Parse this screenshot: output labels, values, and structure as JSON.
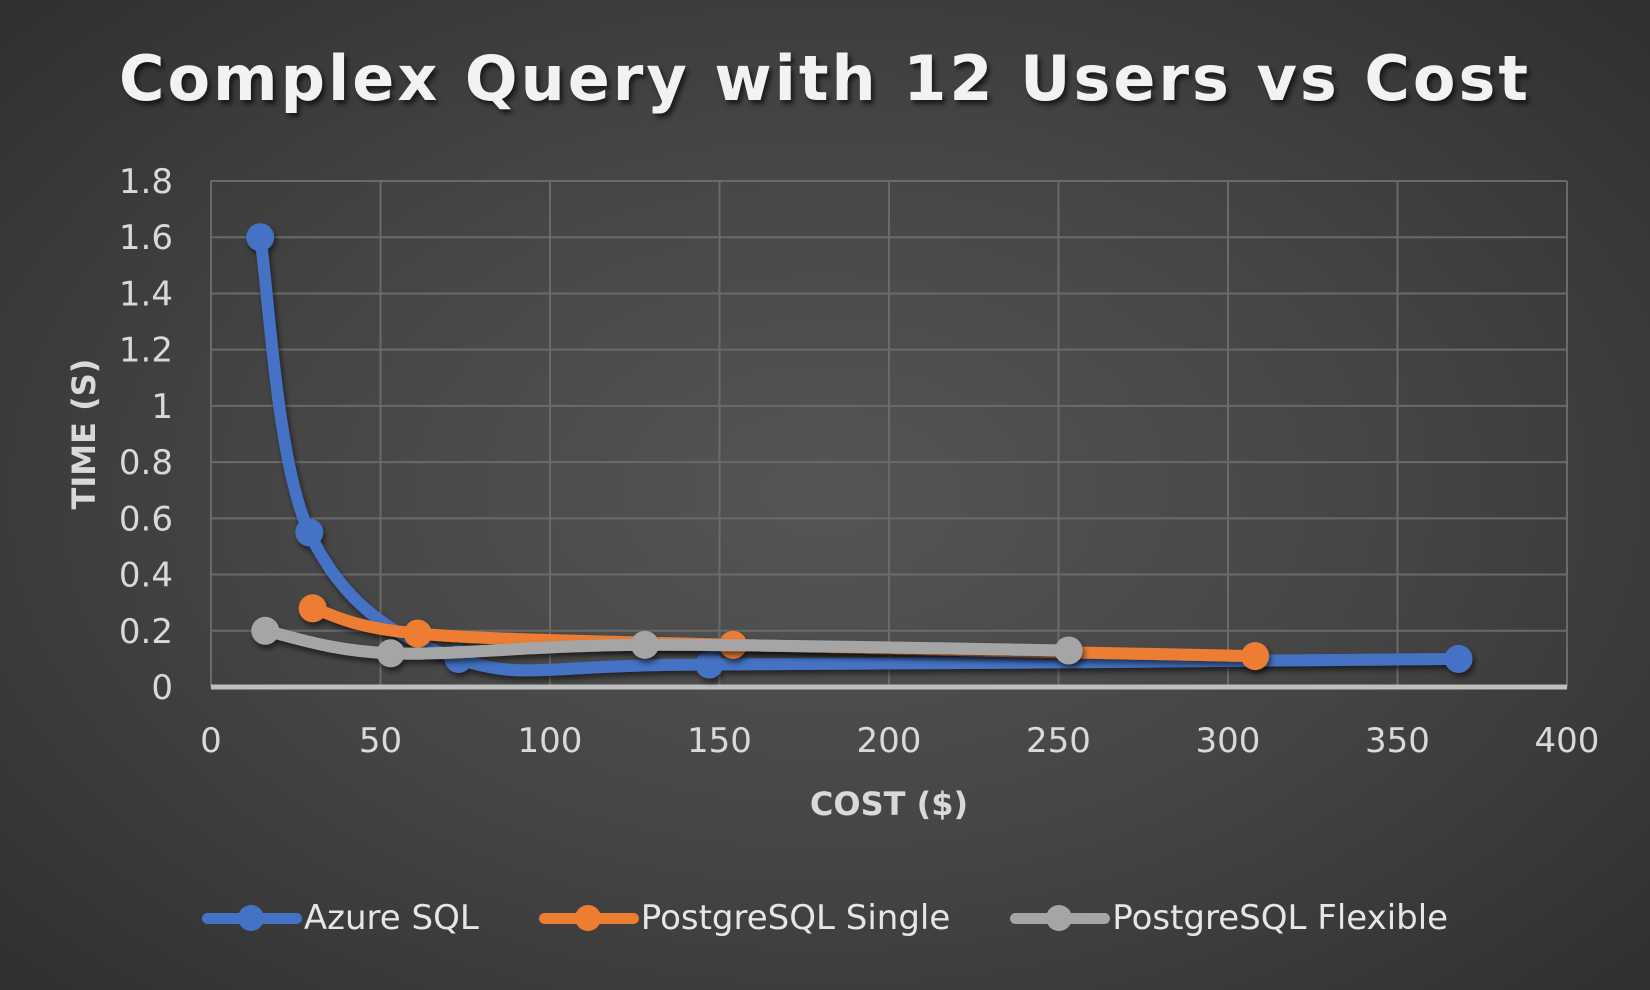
{
  "chart_data": {
    "type": "scatter",
    "subtype": "scatter-smooth-lines-markers",
    "title": "Complex Query with 12 Users vs Cost",
    "xlabel": "COST ($)",
    "ylabel": "TIME (S)",
    "xlim": [
      0,
      400
    ],
    "ylim": [
      0,
      1.8
    ],
    "xticks": [
      0,
      50,
      100,
      150,
      200,
      250,
      300,
      350,
      400
    ],
    "yticks": [
      0,
      0.2,
      0.4,
      0.6,
      0.8,
      1,
      1.2,
      1.4,
      1.6,
      1.8
    ],
    "ytick_labels": [
      "0",
      "0.2",
      "0.4",
      "0.6",
      "0.8",
      "1",
      "1.2",
      "1.4",
      "1.6",
      "1.8"
    ],
    "grid": true,
    "legend_position": "bottom",
    "series": [
      {
        "name": "Azure SQL",
        "color": "#4472C4",
        "x": [
          14.5,
          29,
          73,
          147,
          368
        ],
        "y": [
          1.6,
          0.55,
          0.1,
          0.08,
          0.1
        ]
      },
      {
        "name": "PostgreSQL Single",
        "color": "#ED7D31",
        "x": [
          30,
          61,
          154,
          308
        ],
        "y": [
          0.28,
          0.19,
          0.15,
          0.11
        ]
      },
      {
        "name": "PostgreSQL Flexible",
        "color": "#A5A5A5",
        "x": [
          16,
          53,
          128,
          253
        ],
        "y": [
          0.2,
          0.12,
          0.15,
          0.13
        ]
      }
    ]
  },
  "legend": {
    "items": [
      {
        "label": "Azure SQL",
        "color": "#4472C4"
      },
      {
        "label": "PostgreSQL Single",
        "color": "#ED7D31"
      },
      {
        "label": "PostgreSQL Flexible",
        "color": "#A5A5A5"
      }
    ]
  }
}
